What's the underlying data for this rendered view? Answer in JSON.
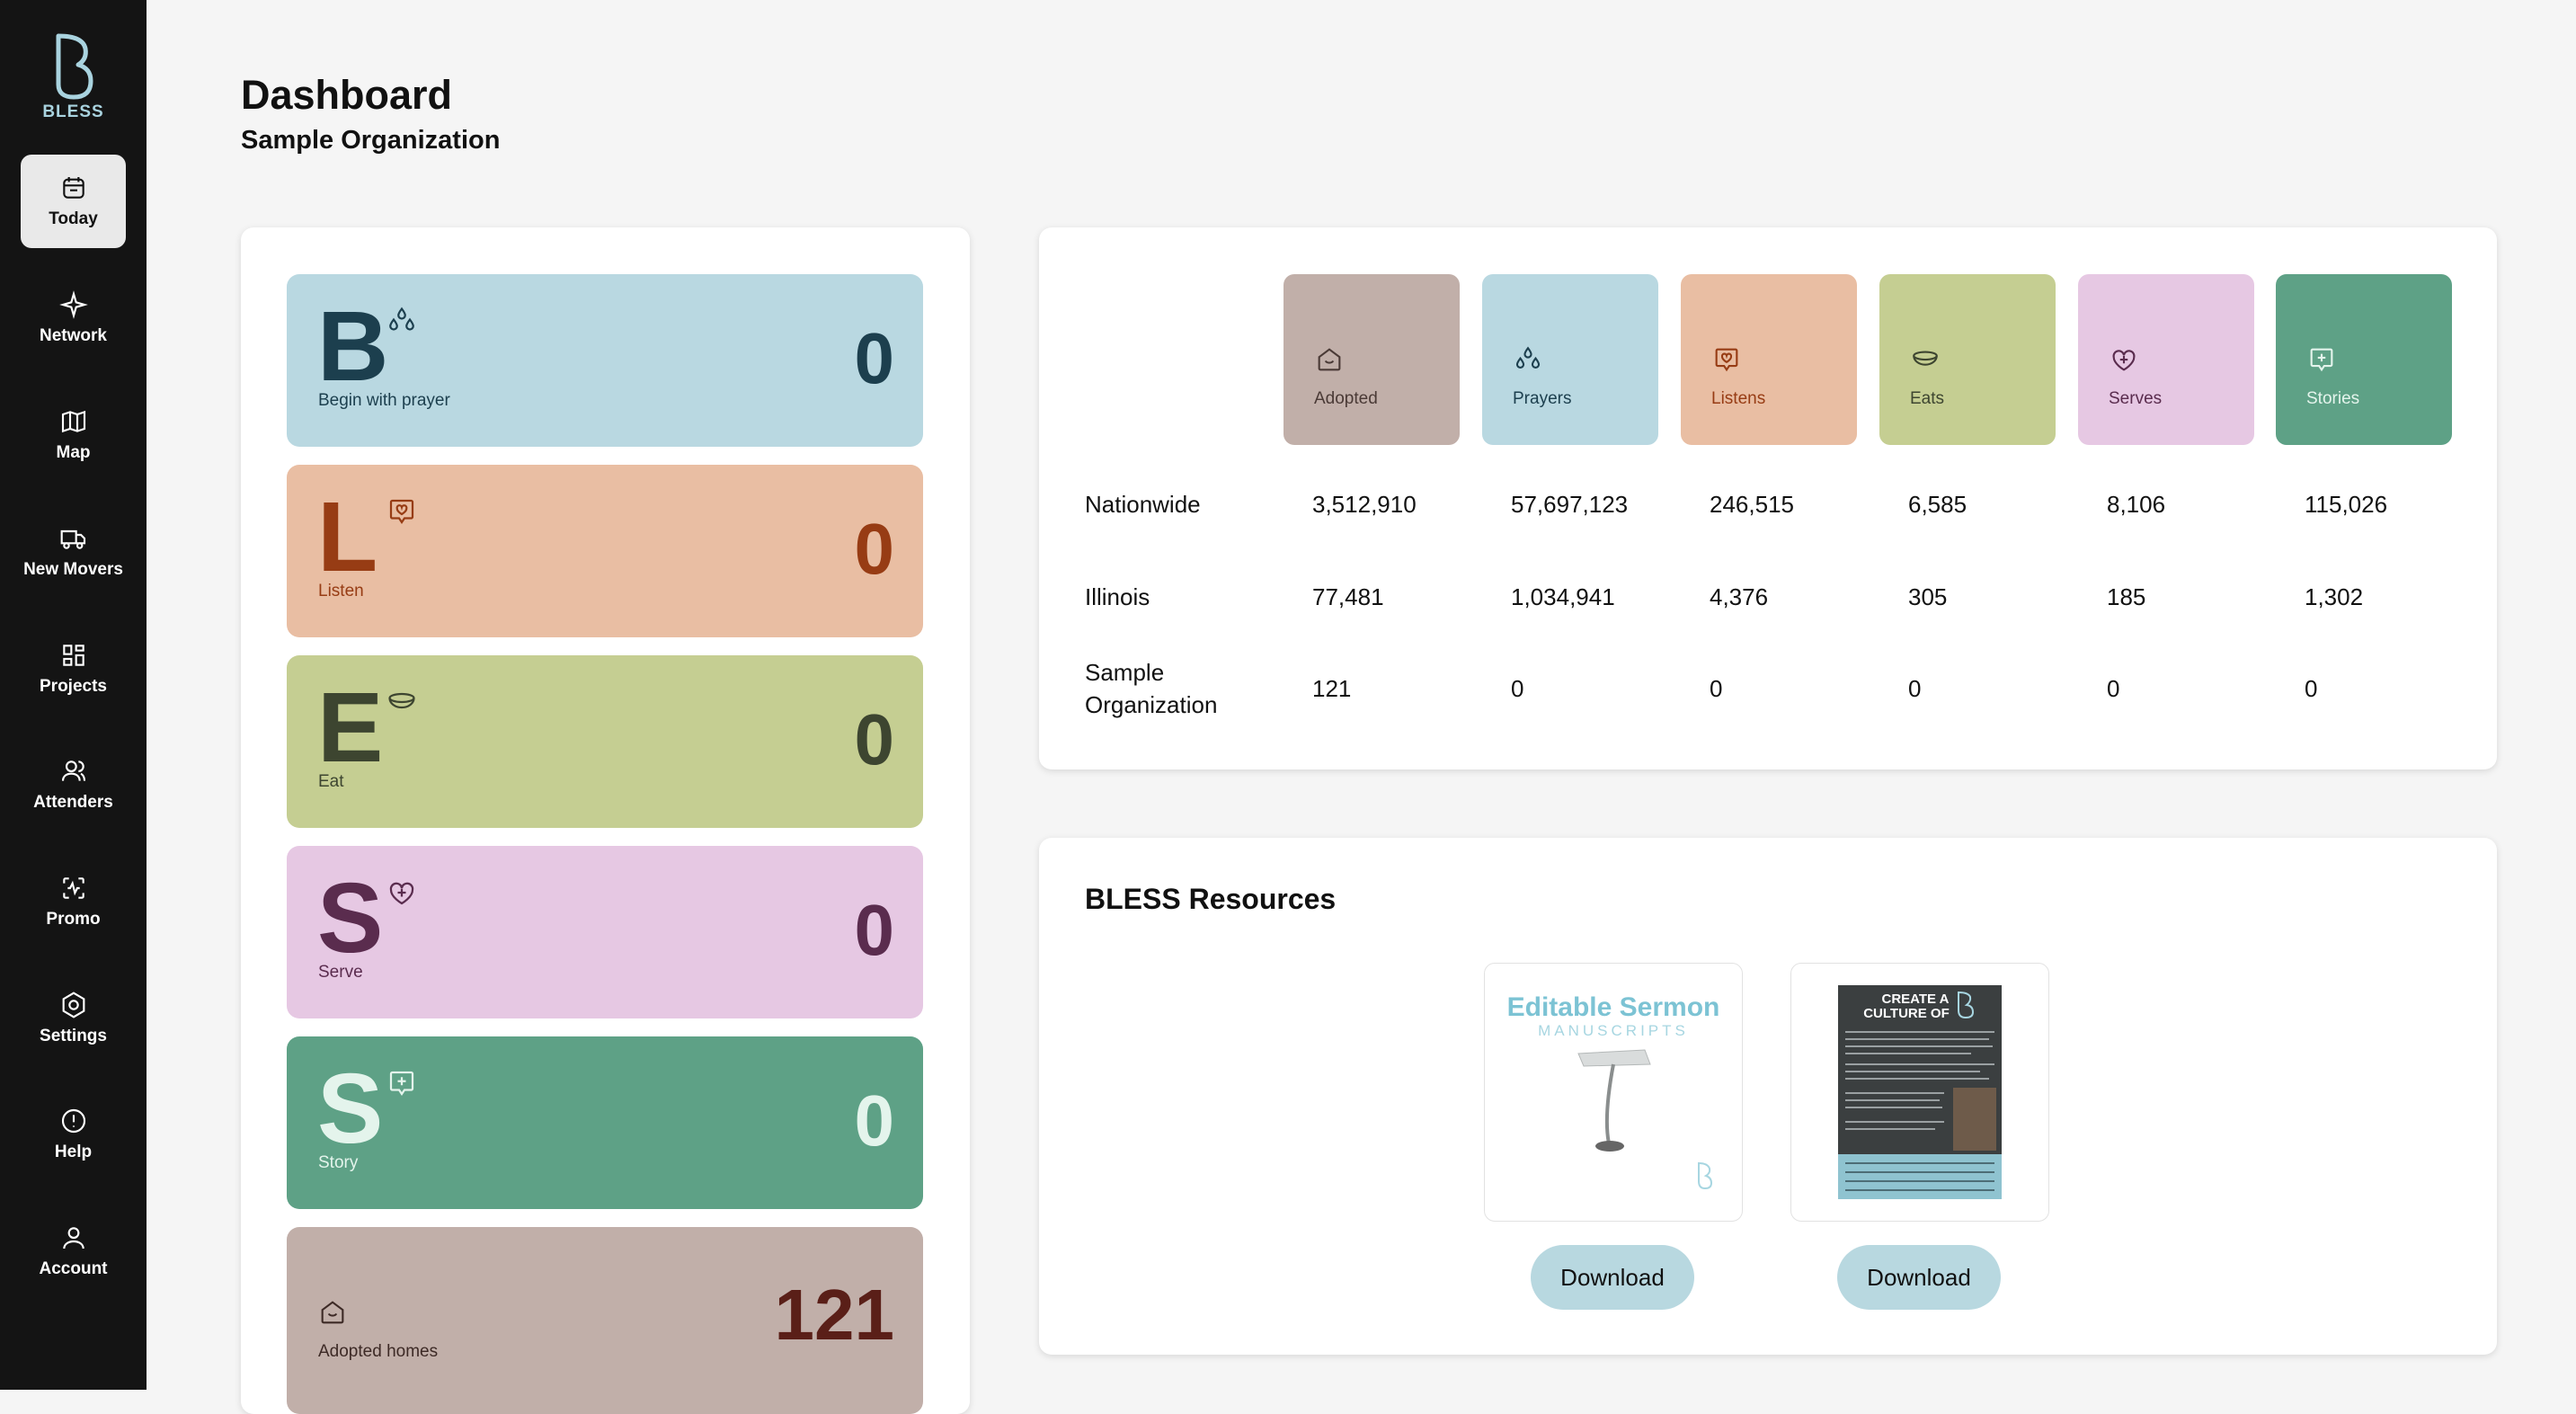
{
  "brand": {
    "name": "BLESS",
    "color": "#a9d3df"
  },
  "nav": [
    {
      "label": "Today",
      "icon": "calendar-icon",
      "active": true
    },
    {
      "label": "Network",
      "icon": "sparkle-icon"
    },
    {
      "label": "Map",
      "icon": "map-icon"
    },
    {
      "label": "New Movers",
      "icon": "truck-icon"
    },
    {
      "label": "Projects",
      "icon": "grid-icon"
    },
    {
      "label": "Attenders",
      "icon": "users-icon"
    },
    {
      "label": "Promo",
      "icon": "promo-icon"
    },
    {
      "label": "Settings",
      "icon": "gear-icon"
    },
    {
      "label": "Help",
      "icon": "alert-circle-icon"
    },
    {
      "label": "Account",
      "icon": "user-icon"
    }
  ],
  "header": {
    "title": "Dashboard",
    "subtitle": "Sample Organization"
  },
  "bless_cards": [
    {
      "letter": "B",
      "caption": "Begin with prayer",
      "count": "0",
      "icon": "prayer-drops-icon",
      "bg": "#b9d8e1",
      "fg": "#1c3f4e"
    },
    {
      "letter": "L",
      "caption": "Listen",
      "count": "0",
      "icon": "heart-chat-icon",
      "bg": "#e9bea3",
      "fg": "#973c14"
    },
    {
      "letter": "E",
      "caption": "Eat",
      "count": "0",
      "icon": "bowl-icon",
      "bg": "#c5ce92",
      "fg": "#3d4530"
    },
    {
      "letter": "S",
      "caption": "Serve",
      "count": "0",
      "icon": "heart-plus-icon",
      "bg": "#e6c8e3",
      "fg": "#5a2c4e"
    },
    {
      "letter": "S",
      "caption": "Story",
      "count": "0",
      "icon": "story-plus-icon",
      "bg": "#5ea186",
      "fg": "#e4f4ec"
    },
    {
      "letter": "",
      "caption": "Adopted homes",
      "count": "121",
      "icon": "home-icon",
      "bg": "#c1afa9",
      "fg": "#5a1f18"
    }
  ],
  "stats": {
    "columns": [
      {
        "label": "Adopted",
        "icon": "home-icon",
        "bg": "#c1afa9",
        "fg": "#4a3a36"
      },
      {
        "label": "Prayers",
        "icon": "prayer-drops-icon",
        "bg": "#b9d8e1",
        "fg": "#1c3f4e"
      },
      {
        "label": "Listens",
        "icon": "heart-chat-icon",
        "bg": "#e9bea3",
        "fg": "#973c14"
      },
      {
        "label": "Eats",
        "icon": "bowl-icon",
        "bg": "#c5ce92",
        "fg": "#3d4530"
      },
      {
        "label": "Serves",
        "icon": "heart-plus-icon",
        "bg": "#e6c8e3",
        "fg": "#5a2c4e"
      },
      {
        "label": "Stories",
        "icon": "story-plus-icon",
        "bg": "#5ea186",
        "fg": "#e4f4ec"
      }
    ],
    "rows": [
      {
        "label": "Nationwide",
        "values": [
          "3,512,910",
          "57,697,123",
          "246,515",
          "6,585",
          "8,106",
          "115,026"
        ]
      },
      {
        "label": "Illinois",
        "values": [
          "77,481",
          "1,034,941",
          "4,376",
          "305",
          "185",
          "1,302"
        ]
      },
      {
        "label": "Sample Organization",
        "label_line1": "Sample",
        "label_line2": "Organization",
        "values": [
          "121",
          "0",
          "0",
          "0",
          "0",
          "0"
        ]
      }
    ]
  },
  "resources": {
    "title": "BLESS Resources",
    "items": [
      {
        "name": "editable-sermon-manuscripts",
        "title_line1": "Editable Sermon",
        "title_line2": "MANUSCRIPTS",
        "button": "Download"
      },
      {
        "name": "create-a-culture-of-bless",
        "title_line1": "CREATE A",
        "title_line2": "CULTURE OF",
        "button": "Download"
      }
    ]
  }
}
